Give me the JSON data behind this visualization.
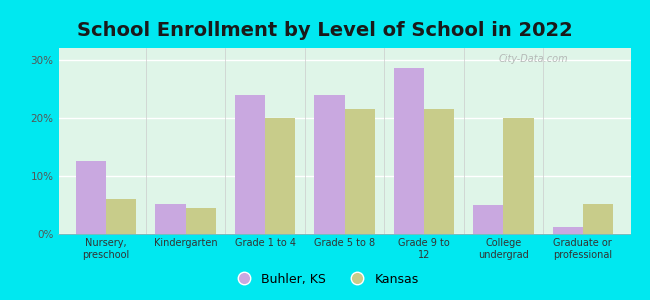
{
  "title": "School Enrollment by Level of School in 2022",
  "categories": [
    "Nursery,\npreschool",
    "Kindergarten",
    "Grade 1 to 4",
    "Grade 5 to 8",
    "Grade 9 to\n12",
    "College\nundergrad",
    "Graduate or\nprofessional"
  ],
  "buhler_values": [
    12.5,
    5.2,
    24.0,
    24.0,
    28.5,
    5.0,
    1.2
  ],
  "kansas_values": [
    6.0,
    4.5,
    20.0,
    21.5,
    21.5,
    20.0,
    5.2
  ],
  "buhler_color": "#c9a8e0",
  "kansas_color": "#c8cc8a",
  "background_outer": "#00e8f0",
  "background_inner_top": "#e8f8f0",
  "background_inner": "#dff5e8",
  "bar_width": 0.38,
  "ylim": [
    0,
    32
  ],
  "yticks": [
    0,
    10,
    20,
    30
  ],
  "ytick_labels": [
    "0%",
    "10%",
    "20%",
    "30%"
  ],
  "title_fontsize": 14,
  "legend_label_buhler": "Buhler, KS",
  "legend_label_kansas": "Kansas",
  "watermark": "City-Data.com"
}
